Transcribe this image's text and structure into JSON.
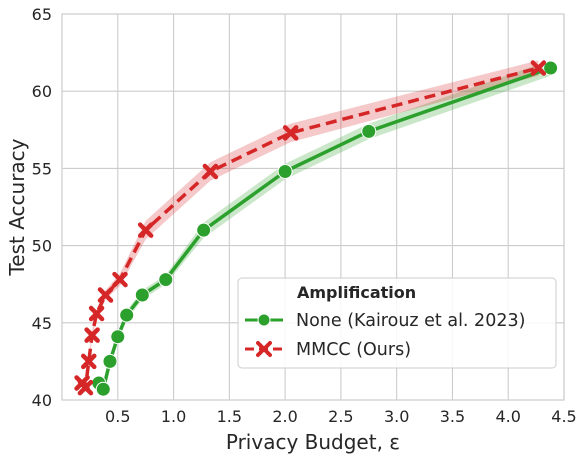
{
  "chart_data": {
    "type": "line",
    "title": "",
    "xlabel": "Privacy Budget, ε",
    "ylabel": "Test Accuracy",
    "xlim": [
      0.0,
      4.5
    ],
    "ylim": [
      40,
      65
    ],
    "xticks": [
      "0.5",
      "1.0",
      "1.5",
      "2.0",
      "2.5",
      "3.0",
      "3.5",
      "4.0",
      "4.5"
    ],
    "yticks": [
      "40",
      "45",
      "50",
      "55",
      "60",
      "65"
    ],
    "xtick_values": [
      0.5,
      1.0,
      1.5,
      2.0,
      2.5,
      3.0,
      3.5,
      4.0,
      4.5
    ],
    "ytick_values": [
      40,
      45,
      50,
      55,
      60,
      65
    ],
    "grid": true,
    "legend": {
      "title": "Amplification",
      "placement": "lower-right"
    },
    "series": [
      {
        "name": "None (Kairouz et al. 2023)",
        "color": "#2ca02c",
        "marker": "circle",
        "linestyle": "solid",
        "x": [
          0.33,
          0.37,
          0.43,
          0.5,
          0.58,
          0.72,
          0.93,
          1.27,
          2.0,
          2.75,
          4.38
        ],
        "y": [
          41.1,
          40.7,
          42.5,
          44.1,
          45.5,
          46.8,
          47.8,
          51.0,
          54.8,
          57.4,
          61.5
        ],
        "band": [
          0.3,
          0.3,
          0.3,
          0.3,
          0.3,
          0.3,
          0.3,
          0.5,
          0.5,
          0.5,
          0.5
        ]
      },
      {
        "name": "MMCC (Ours)",
        "color": "#d62728",
        "marker": "x",
        "linestyle": "dashed",
        "x": [
          0.18,
          0.21,
          0.24,
          0.27,
          0.31,
          0.39,
          0.52,
          0.75,
          1.33,
          2.05,
          4.27
        ],
        "y": [
          41.1,
          40.8,
          42.5,
          44.2,
          45.6,
          46.8,
          47.8,
          51.0,
          54.8,
          57.3,
          61.5
        ],
        "band": [
          0.3,
          0.3,
          0.3,
          0.3,
          0.3,
          0.3,
          0.4,
          0.6,
          0.6,
          0.6,
          0.5
        ]
      }
    ]
  }
}
